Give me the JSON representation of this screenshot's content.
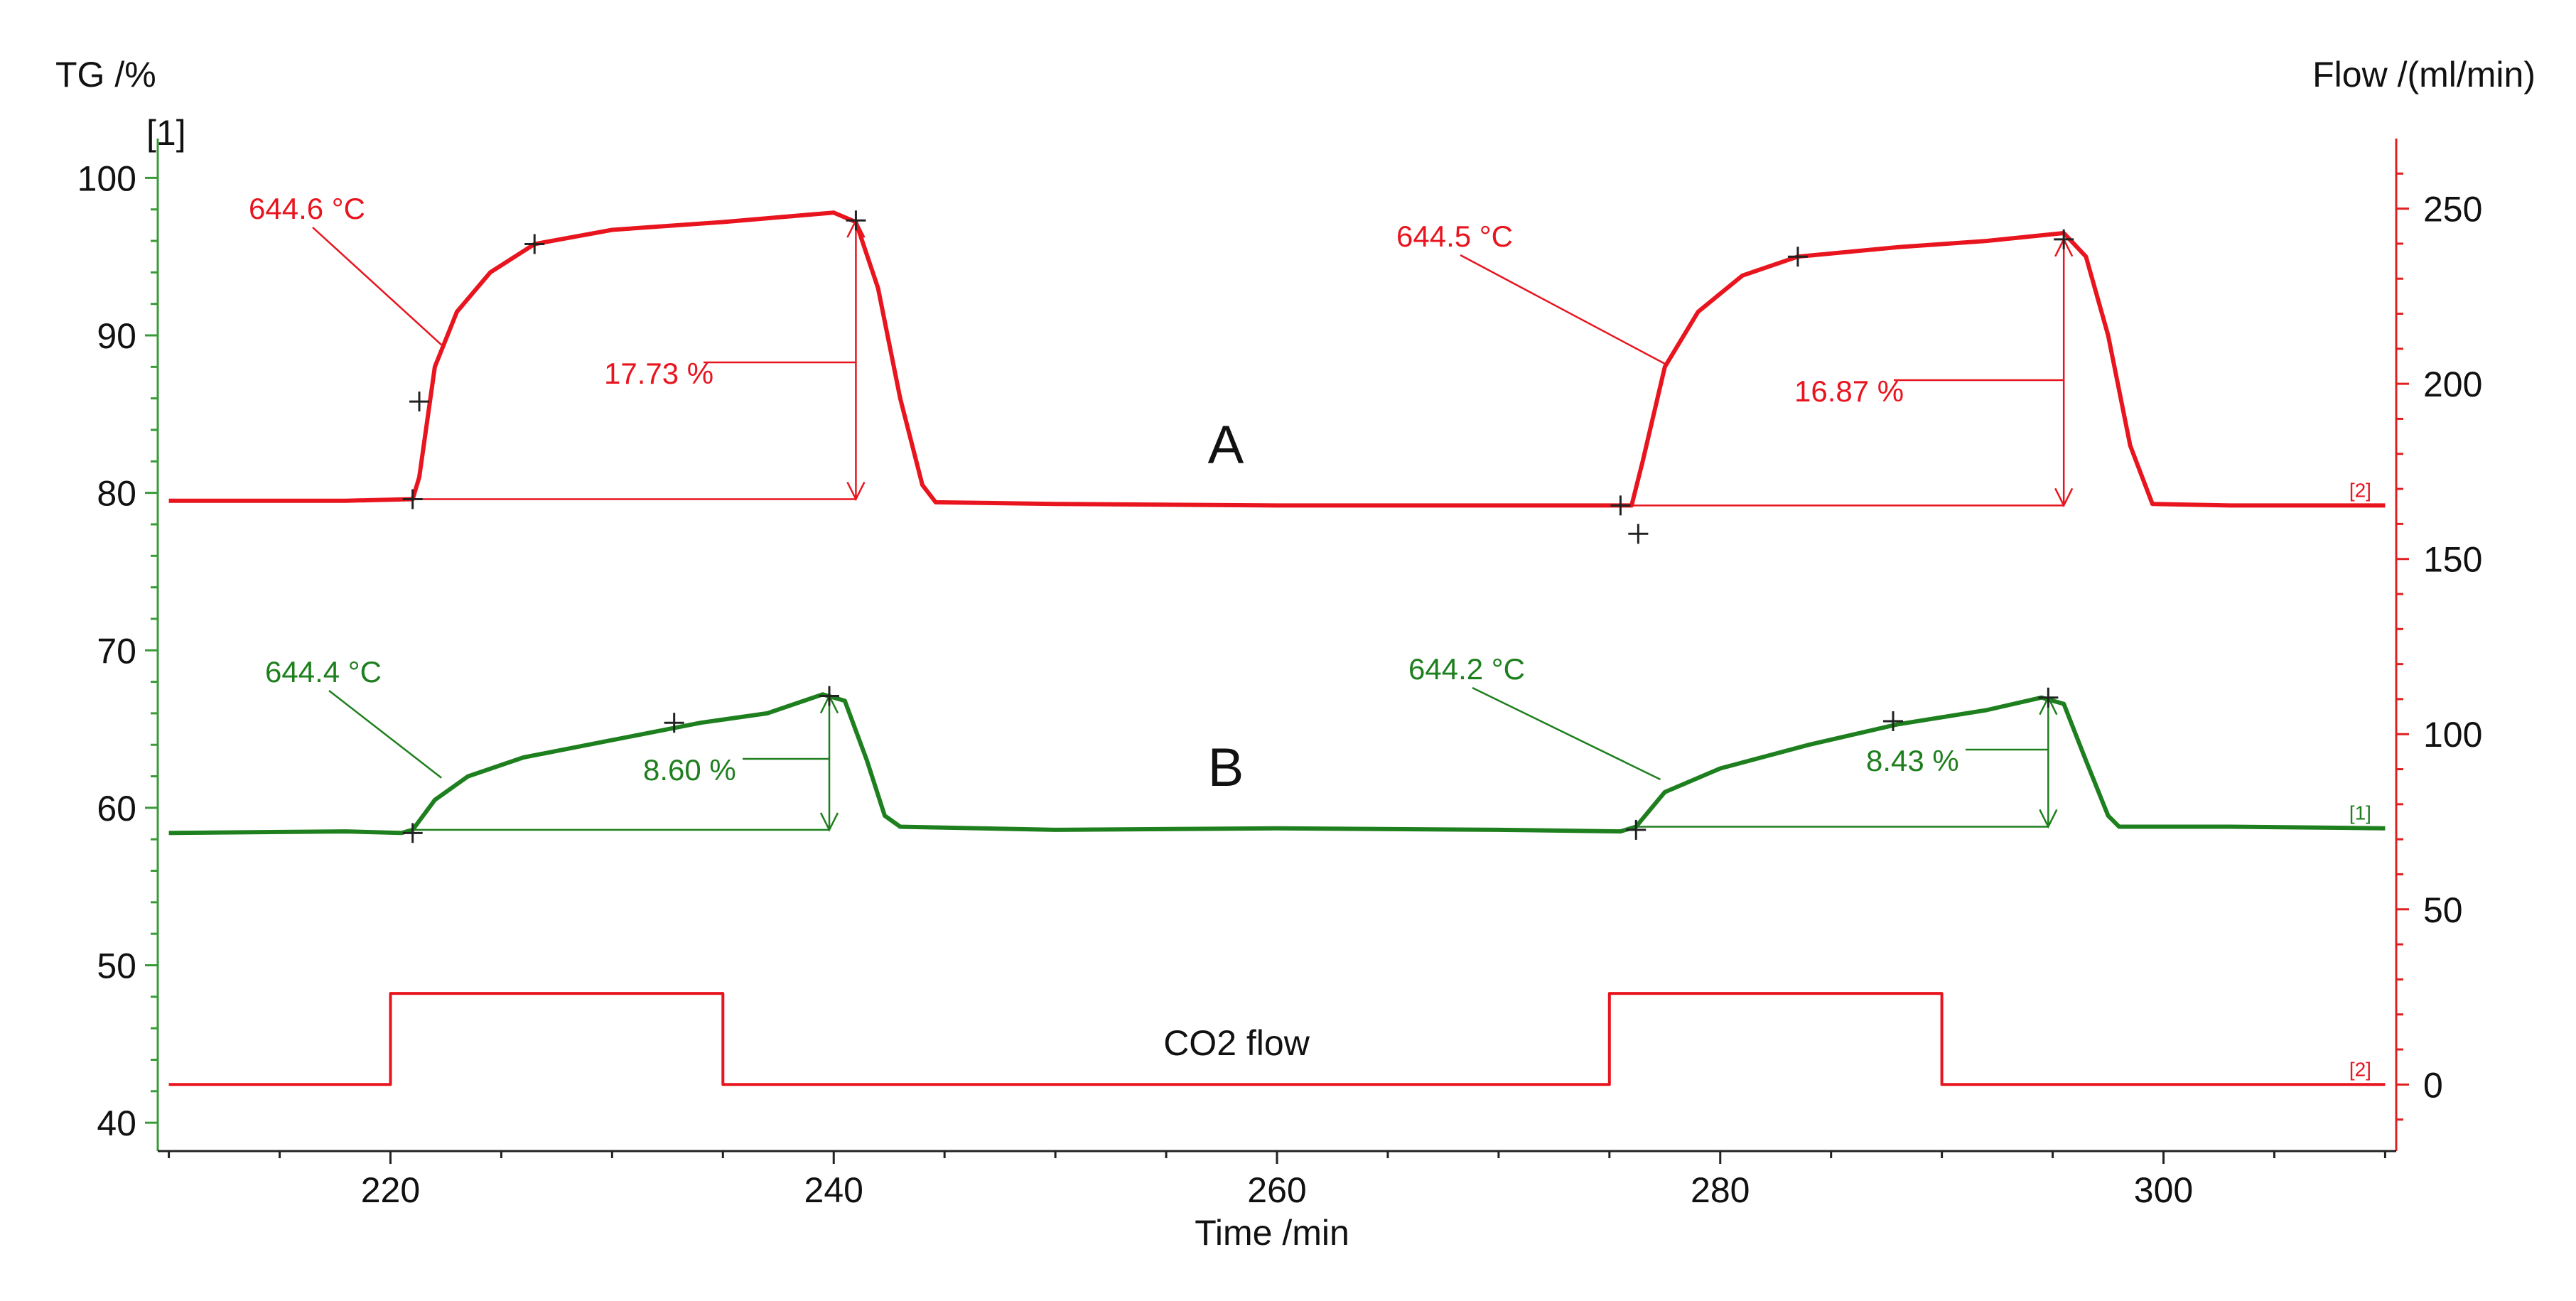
{
  "colors": {
    "tg_left": "#3a9a3a",
    "flow_right": "#e02020",
    "curve_A": "#e8141e",
    "curve_B": "#1e7f1e",
    "co2": "#e8141e",
    "text": "#111111"
  },
  "chart_data": {
    "type": "line",
    "title": "",
    "xlabel": "Time /min",
    "xlim": [
      209.5,
      310.5
    ],
    "x_ticks": [
      220,
      240,
      260,
      280,
      300
    ],
    "left_axis": {
      "label": "TG /%",
      "sublabel": "[1]",
      "ylim": [
        38.2,
        102.5
      ],
      "ticks": [
        40,
        50,
        60,
        70,
        80,
        90,
        100
      ]
    },
    "right_axis": {
      "label": "Flow /(ml/min)",
      "ylim": [
        -19,
        270
      ],
      "ticks": [
        0,
        50,
        100,
        150,
        200,
        250
      ]
    },
    "series": [
      {
        "name": "A",
        "axis": "left",
        "points": [
          [
            210,
            79.5
          ],
          [
            218,
            79.5
          ],
          [
            221,
            79.6
          ],
          [
            221.3,
            81
          ],
          [
            222,
            88
          ],
          [
            223,
            91.5
          ],
          [
            224.5,
            94
          ],
          [
            226.5,
            95.8
          ],
          [
            230,
            96.7
          ],
          [
            235,
            97.2
          ],
          [
            240,
            97.8
          ],
          [
            241,
            97.2
          ],
          [
            242,
            93
          ],
          [
            243,
            86
          ],
          [
            244,
            80.5
          ],
          [
            244.6,
            79.4
          ],
          [
            250,
            79.3
          ],
          [
            260,
            79.2
          ],
          [
            270,
            79.2
          ],
          [
            275,
            79.2
          ],
          [
            276,
            79.2
          ],
          [
            276.5,
            82
          ],
          [
            277.5,
            88
          ],
          [
            279,
            91.5
          ],
          [
            281,
            93.8
          ],
          [
            283.5,
            95
          ],
          [
            288,
            95.6
          ],
          [
            292,
            96
          ],
          [
            295.5,
            96.5
          ],
          [
            296.5,
            95
          ],
          [
            297.5,
            90
          ],
          [
            298.5,
            83
          ],
          [
            299.5,
            79.3
          ],
          [
            303,
            79.2
          ],
          [
            308,
            79.2
          ],
          [
            310,
            79.2
          ]
        ],
        "tag": "[2]",
        "annotations": [
          {
            "label": "644.6 °C",
            "x": 222.3,
            "y": 89.4
          },
          {
            "label": "17.73 %",
            "x": 241,
            "y_low": 79.6,
            "y_high": 97.3
          },
          {
            "label": "644.5 °C",
            "x": 277.5,
            "y": 88.2
          },
          {
            "label": "16.87 %",
            "x": 295.5,
            "y_low": 79.2,
            "y_high": 96.1
          }
        ]
      },
      {
        "name": "B",
        "axis": "left",
        "points": [
          [
            210,
            58.4
          ],
          [
            218,
            58.5
          ],
          [
            220.5,
            58.4
          ],
          [
            221,
            58.6
          ],
          [
            222,
            60.5
          ],
          [
            223.5,
            62
          ],
          [
            226,
            63.2
          ],
          [
            230,
            64.3
          ],
          [
            234,
            65.4
          ],
          [
            237,
            66
          ],
          [
            239.5,
            67.2
          ],
          [
            240.5,
            66.8
          ],
          [
            241.5,
            63
          ],
          [
            242.3,
            59.5
          ],
          [
            243,
            58.8
          ],
          [
            250,
            58.6
          ],
          [
            260,
            58.7
          ],
          [
            270,
            58.6
          ],
          [
            275.5,
            58.5
          ],
          [
            276.2,
            58.8
          ],
          [
            277.5,
            61
          ],
          [
            280,
            62.5
          ],
          [
            284,
            64
          ],
          [
            288,
            65.3
          ],
          [
            292,
            66.2
          ],
          [
            294.5,
            67
          ],
          [
            295.5,
            66.6
          ],
          [
            296.5,
            63
          ],
          [
            297.5,
            59.5
          ],
          [
            298,
            58.8
          ],
          [
            303,
            58.8
          ],
          [
            310,
            58.7
          ]
        ],
        "tag": "[1]",
        "annotations": [
          {
            "label": "644.4 °C",
            "x": 222.3,
            "y": 61.9
          },
          {
            "label": "8.60 %",
            "x": 239.8,
            "y_low": 58.6,
            "y_high": 67.1
          },
          {
            "label": "644.2 °C",
            "x": 277.3,
            "y": 61.8
          },
          {
            "label": "8.43 %",
            "x": 294.8,
            "y_low": 58.8,
            "y_high": 67
          }
        ]
      },
      {
        "name": "CO2 flow",
        "axis": "right",
        "points": [
          [
            210,
            0
          ],
          [
            220,
            0
          ],
          [
            220,
            26
          ],
          [
            235,
            26
          ],
          [
            235,
            0
          ],
          [
            275,
            0
          ],
          [
            275,
            26
          ],
          [
            290,
            26
          ],
          [
            290,
            0
          ],
          [
            310,
            0
          ]
        ],
        "tag": "[2]"
      }
    ],
    "labels": {
      "A": "A",
      "B": "B",
      "co2": "CO2 flow"
    }
  }
}
